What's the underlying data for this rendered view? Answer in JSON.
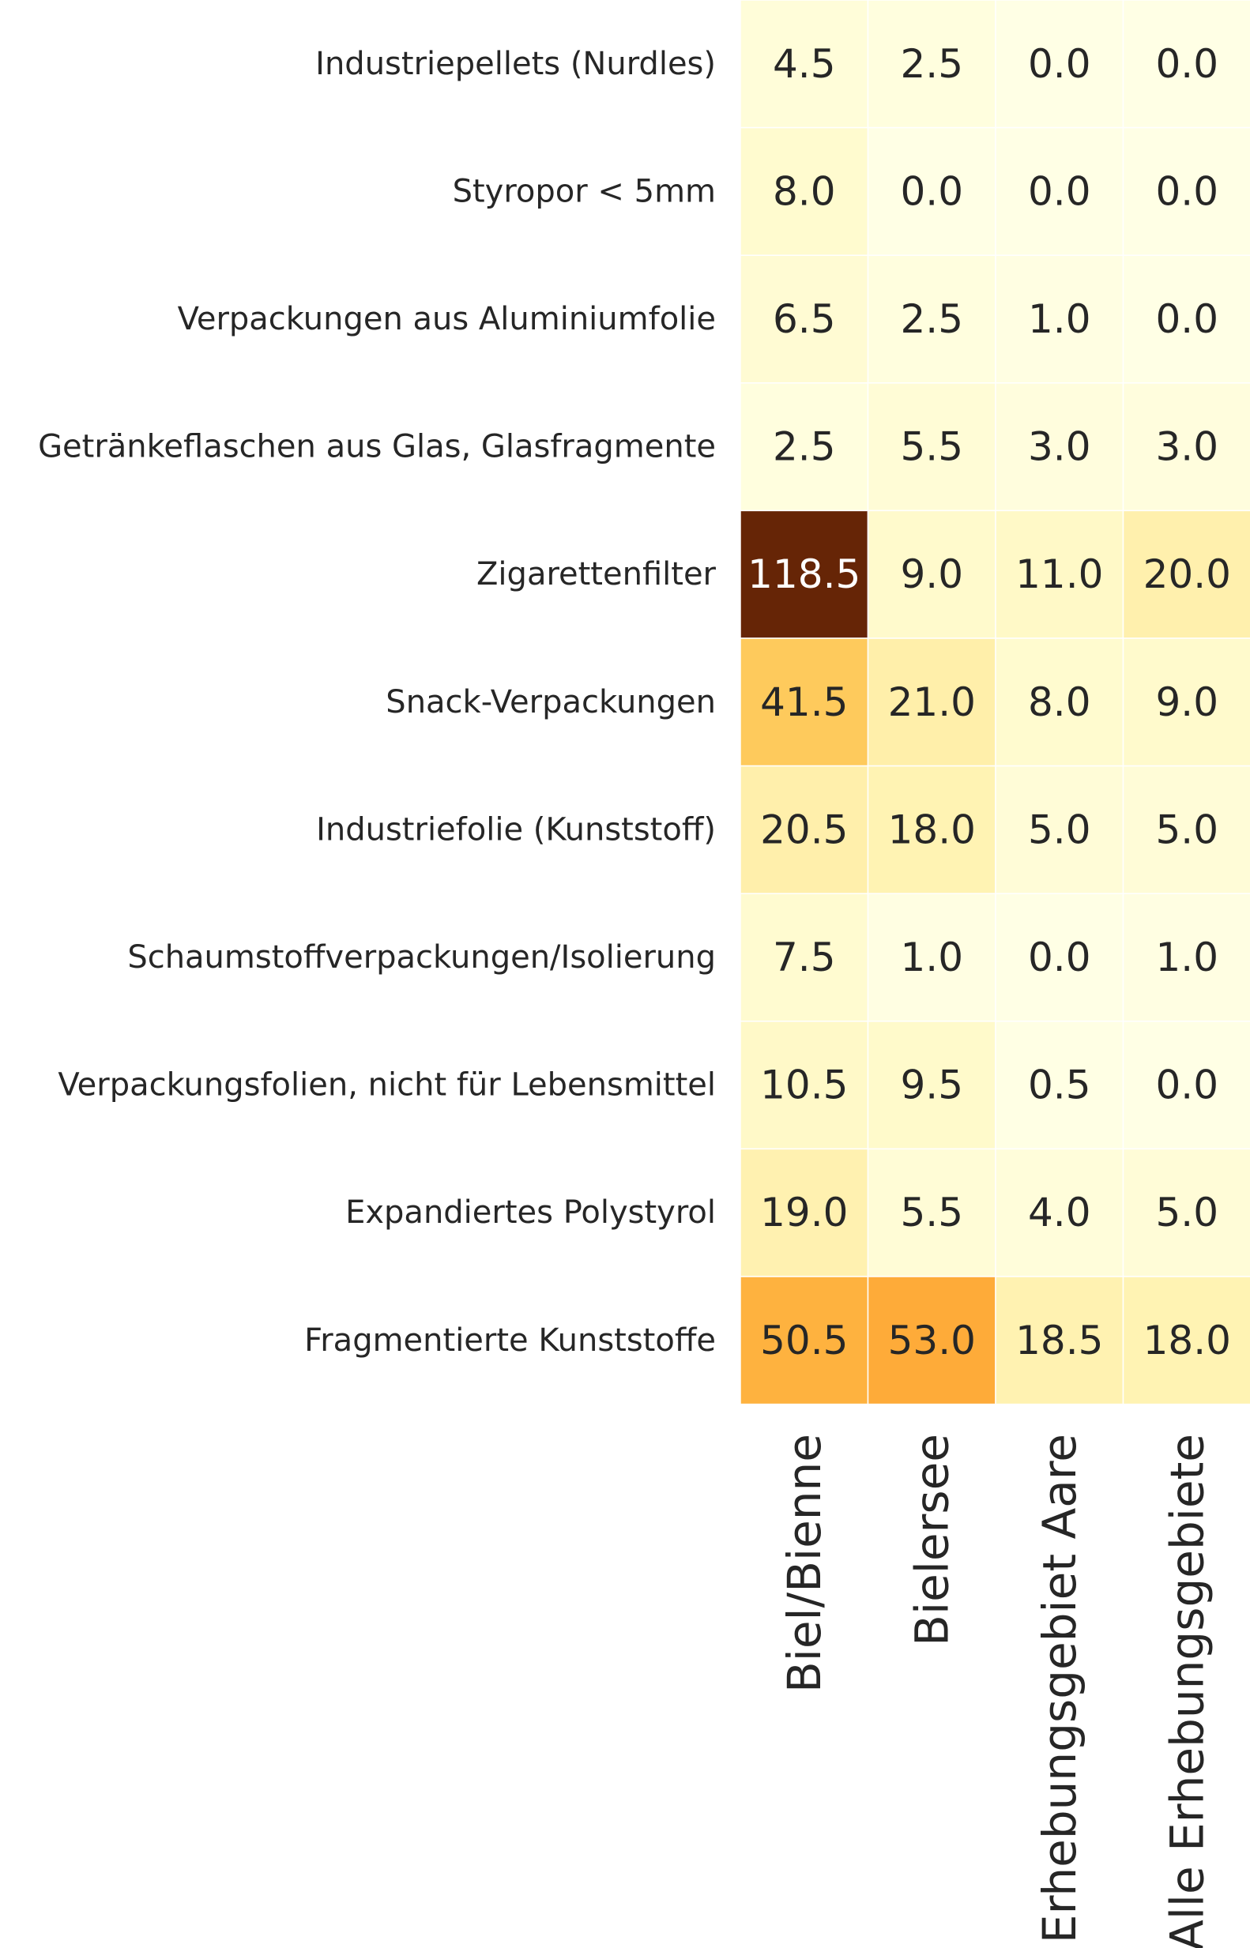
{
  "chart_data": {
    "type": "heatmap",
    "rows": [
      "Industriepellets (Nurdles)",
      "Styropor < 5mm",
      "Verpackungen aus Aluminiumfolie",
      "Getränkeflaschen aus Glas, Glasfragmente",
      "Zigarettenfilter",
      "Snack-Verpackungen",
      "Industriefolie (Kunststoff)",
      "Schaumstoffverpackungen/Isolierung",
      "Verpackungsfolien, nicht für Lebensmittel",
      "Expandiertes Polystyrol",
      "Fragmentierte Kunststoffe"
    ],
    "columns": [
      "Biel/Bienne",
      "Bielersee",
      "Erhebungsgebiet Aare",
      "Alle Erhebungsgebiete"
    ],
    "values": [
      [
        4.5,
        2.5,
        0.0,
        0.0
      ],
      [
        8.0,
        0.0,
        0.0,
        0.0
      ],
      [
        6.5,
        2.5,
        1.0,
        0.0
      ],
      [
        2.5,
        5.5,
        3.0,
        3.0
      ],
      [
        118.5,
        9.0,
        11.0,
        20.0
      ],
      [
        41.5,
        21.0,
        8.0,
        9.0
      ],
      [
        20.5,
        18.0,
        5.0,
        5.0
      ],
      [
        7.5,
        1.0,
        0.0,
        1.0
      ],
      [
        10.5,
        9.5,
        0.5,
        0.0
      ],
      [
        19.0,
        5.5,
        4.0,
        5.0
      ],
      [
        50.5,
        53.0,
        18.5,
        18.0
      ]
    ],
    "value_format": "0.0",
    "colormap": "YlOrBr",
    "color_range": [
      0,
      118.5
    ],
    "colorbar": false,
    "grid": false
  }
}
